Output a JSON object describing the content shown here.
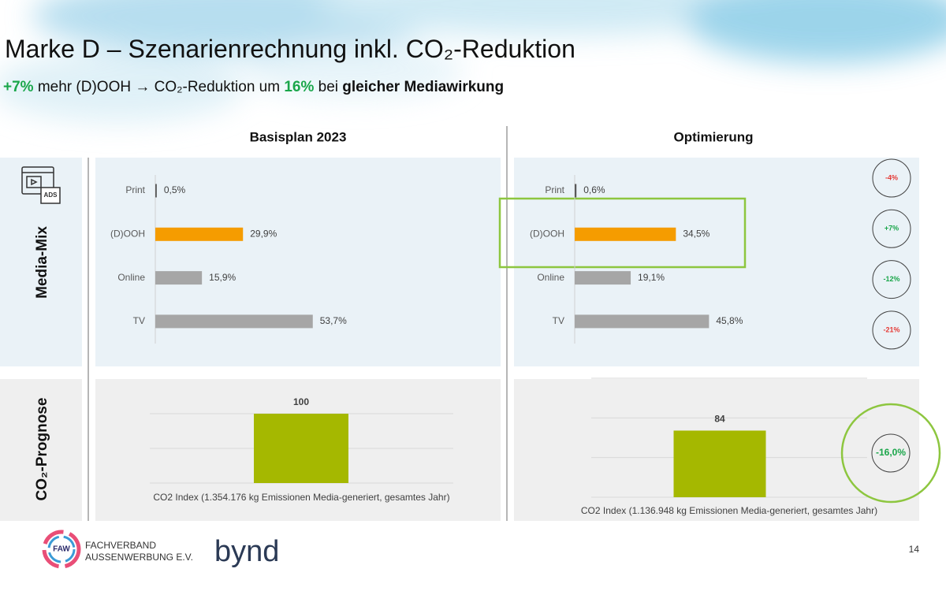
{
  "title": "Marke D – Szenarienrechnung inkl. CO₂-Reduktion",
  "subtitle": [
    "+7%",
    " mehr (D)OOH ",
    "→",
    " CO₂-Reduktion um ",
    "16%",
    " bei ",
    "gleicher Mediawirkung"
  ],
  "row_labels": [
    "Media-Mix",
    "CO₂-Prognose"
  ],
  "chart_data": [
    {
      "type": "barh",
      "title": "Basisplan 2023",
      "categories": [
        "Print",
        "(D)OOH",
        "Online",
        "TV"
      ],
      "values": [
        0.5,
        29.9,
        15.9,
        53.7
      ],
      "value_labels": [
        "0,5%",
        "29,9%",
        "15,9%",
        "53,7%"
      ],
      "colors": [
        "#595959",
        "#f59c00",
        "#a6a6a6",
        "#a6a6a6"
      ]
    },
    {
      "type": "barh",
      "title": "Optimierung",
      "categories": [
        "Print",
        "(D)OOH",
        "Online",
        "TV"
      ],
      "values": [
        0.6,
        34.5,
        19.1,
        45.8
      ],
      "value_labels": [
        "0,6%",
        "34,5%",
        "19,1%",
        "45,8%"
      ],
      "colors": [
        "#595959",
        "#f59c00",
        "#a6a6a6",
        "#a6a6a6"
      ],
      "changes": {
        "values": [
          -4,
          7,
          -12,
          -21
        ],
        "value_labels": [
          "-4%",
          "+7%",
          "-12%",
          "-21%"
        ],
        "colors": [
          "#e53935",
          "#1aa64a",
          "#1aa64a",
          "#e53935"
        ]
      }
    },
    {
      "type": "bar",
      "categories": [
        "CO2 Index (1.354.176 kg Emissionen Media-generiert, gesamtes Jahr)"
      ],
      "values": [
        100
      ],
      "color": "#a5b800",
      "ylim": [
        0,
        100
      ],
      "yticks": [
        0,
        50,
        100
      ],
      "grid": true
    },
    {
      "type": "bar",
      "categories": [
        "CO2 Index (1.136.948 kg Emissionen Media-generiert, gesamtes Jahr)"
      ],
      "values": [
        84
      ],
      "color": "#a5b800",
      "ylim": [
        0,
        150
      ],
      "yticks": [
        0,
        50,
        100,
        150
      ],
      "grid": true,
      "change": {
        "value": -16.0,
        "label": "-16,0%",
        "color": "#1aa64a"
      }
    }
  ],
  "footer": {
    "org_short": "FAW",
    "org_line1": "FACHVERBAND",
    "org_line2": "AUSSENWERBUNG E.V.",
    "partner": "bynd",
    "page_number": "14"
  }
}
